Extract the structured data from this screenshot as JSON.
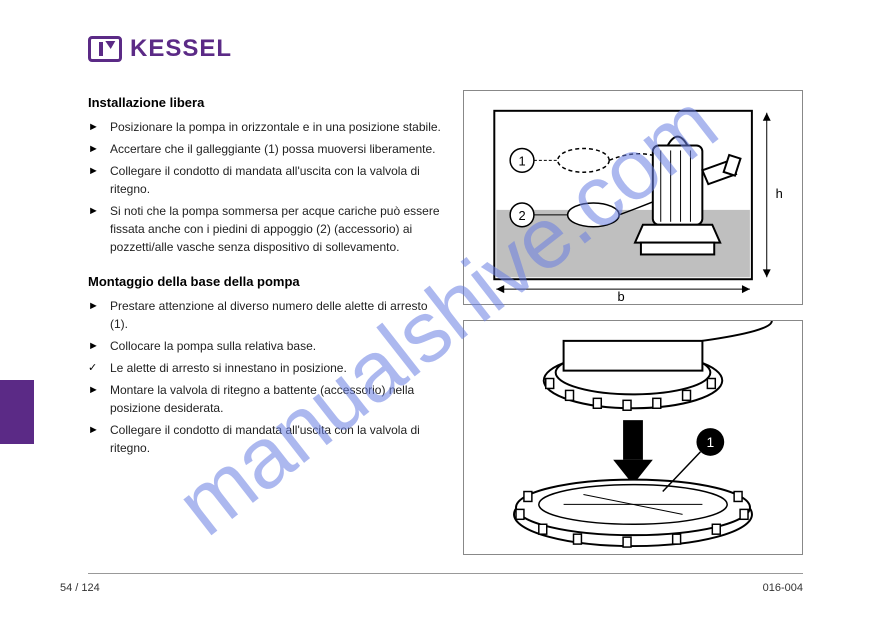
{
  "brand": {
    "name": "KESSEL",
    "color": "#5b2a86",
    "logo_text": "KESSEL"
  },
  "watermark": {
    "text": "manualshive.com",
    "color": "#6a7fe3"
  },
  "colors": {
    "text": "#222222",
    "rule": "#999999",
    "figure_border": "#888888",
    "sidebar_tab": "#5b2a86",
    "water_fill": "#bfbfbf",
    "pump_stroke": "#000000",
    "callout_fill": "#ffffff"
  },
  "section1": {
    "title": "Installazione libera",
    "items": [
      {
        "marker": "►",
        "text": "Posizionare la pompa in orizzontale e in una posizione stabile."
      },
      {
        "marker": "►",
        "text": "Accertare che il galleggiante (1) possa muoversi liberamente."
      },
      {
        "marker": "►",
        "text": "Collegare il condotto di mandata all'uscita con la valvola di ritegno."
      },
      {
        "marker": "►",
        "text": "Si noti che la pompa sommersa per acque cariche può essere fissata anche con i piedini di appoggio (2) (accessorio) ai pozzetti/alle vasche senza dispositivo di sollevamento."
      }
    ]
  },
  "section2": {
    "title": "Montaggio della base della pompa",
    "items": [
      {
        "marker": "►",
        "text": "Prestare attenzione al diverso numero delle alette di arresto (1)."
      },
      {
        "marker": "►",
        "text": "Collocare la pompa sulla relativa base."
      },
      {
        "marker": "✓",
        "text": "Le alette di arresto si innestano in posizione."
      },
      {
        "marker": "►",
        "text": "Montare la valvola di ritegno a battente (accessorio) nella posizione desiderata."
      },
      {
        "marker": "►",
        "text": "Collegare il condotto di mandata all'uscita con la valvola di ritegno."
      }
    ]
  },
  "figures": {
    "top": {
      "labels": {
        "h": "h",
        "b": "b",
        "c1": "1",
        "c2": "2"
      }
    },
    "bottom": {
      "labels": {
        "c1": "1"
      }
    }
  },
  "footer": {
    "page": "54 / 124",
    "docid": "016-004"
  }
}
